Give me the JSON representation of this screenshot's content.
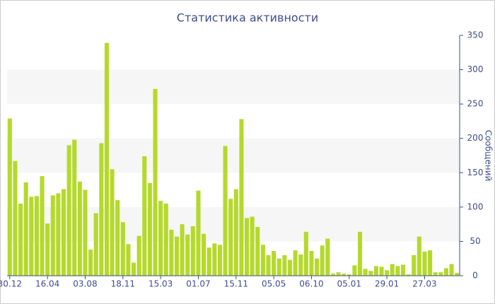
{
  "chart_data": {
    "type": "bar",
    "title": "Статистика активности",
    "y_label": "Сообщений",
    "categories": [
      "30.12",
      null,
      null,
      null,
      null,
      null,
      null,
      "16.04",
      null,
      null,
      null,
      null,
      null,
      null,
      "03.08",
      null,
      null,
      null,
      null,
      null,
      null,
      "18.11",
      null,
      null,
      null,
      null,
      null,
      null,
      "15.03",
      null,
      null,
      null,
      null,
      null,
      null,
      "01.07",
      null,
      null,
      null,
      null,
      null,
      null,
      "15.11",
      null,
      null,
      null,
      null,
      null,
      null,
      "05.05",
      null,
      null,
      null,
      null,
      null,
      null,
      "06.10",
      null,
      null,
      null,
      null,
      null,
      null,
      "05.01",
      null,
      null,
      null,
      null,
      null,
      null,
      "29.01",
      null,
      null,
      null,
      null,
      null,
      null,
      "27.03",
      null,
      null,
      null,
      null,
      null,
      null
    ],
    "values": [
      229,
      167,
      105,
      136,
      115,
      116,
      145,
      76,
      117,
      120,
      126,
      190,
      198,
      137,
      125,
      38,
      91,
      193,
      339,
      155,
      110,
      78,
      46,
      19,
      58,
      174,
      135,
      272,
      109,
      105,
      67,
      57,
      75,
      60,
      72,
      124,
      61,
      41,
      47,
      45,
      189,
      112,
      126,
      228,
      84,
      86,
      71,
      45,
      30,
      36,
      25,
      30,
      23,
      37,
      31,
      64,
      36,
      25,
      44,
      54,
      3,
      5,
      3,
      2,
      15,
      64,
      10,
      7,
      14,
      13,
      8,
      17,
      14,
      16,
      2,
      30,
      57,
      35,
      37,
      5,
      5,
      11,
      17,
      4
    ],
    "color": "#b5d92b",
    "ylim": [
      0,
      350
    ],
    "yticks": [
      0,
      50,
      100,
      150,
      200,
      250,
      300,
      350
    ],
    "y_axis_side": "right",
    "banded_background": true
  }
}
